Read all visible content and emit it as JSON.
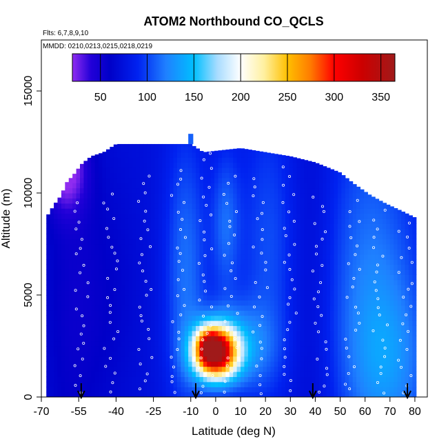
{
  "chart_data": {
    "type": "heatmap",
    "title": "ATOM2 Northbound CO_QCLS",
    "notes": {
      "flights": "Flts: 6,7,8,9,10",
      "dates": "MMDD: 0210,0213,0215,0218,0219"
    },
    "xlabel": "Latitude (deg N)",
    "ylabel": "Altitude (m)",
    "xlim": [
      -70,
      85
    ],
    "ylim": [
      0,
      17500
    ],
    "x_ticks": [
      -70,
      -55,
      -40,
      -25,
      -10,
      0,
      10,
      20,
      30,
      40,
      50,
      60,
      70,
      80
    ],
    "x_tick_labels": [
      "-70",
      "-55",
      "-40",
      "-25",
      "-10",
      "0",
      "10",
      "20",
      "30",
      "40",
      "50",
      "60",
      "70",
      "80"
    ],
    "y_ticks": [
      0,
      5000,
      10000,
      15000
    ],
    "y_tick_labels": [
      "0",
      "5000",
      "10000",
      "15000"
    ],
    "colorbar": {
      "range": [
        20,
        365
      ],
      "ticks": [
        50,
        100,
        150,
        200,
        250,
        300,
        350
      ],
      "tick_labels": [
        "50",
        "100",
        "150",
        "200",
        "250",
        "300",
        "350"
      ],
      "stops": [
        {
          "v": 20,
          "c": "#8f2cf0"
        },
        {
          "v": 40,
          "c": "#2200d8"
        },
        {
          "v": 60,
          "c": "#0000c8"
        },
        {
          "v": 90,
          "c": "#0022f0"
        },
        {
          "v": 120,
          "c": "#1f80ff"
        },
        {
          "v": 150,
          "c": "#00bfff"
        },
        {
          "v": 175,
          "c": "#a8dcff"
        },
        {
          "v": 200,
          "c": "#ffffff"
        },
        {
          "v": 225,
          "c": "#fff0a0"
        },
        {
          "v": 250,
          "c": "#ffc000"
        },
        {
          "v": 275,
          "c": "#ff7a00"
        },
        {
          "v": 300,
          "c": "#ff0000"
        },
        {
          "v": 330,
          "c": "#cc0000"
        },
        {
          "v": 365,
          "c": "#a01a1a"
        }
      ]
    },
    "grid": false,
    "ceiling_profile": [
      [
        -68,
        8800
      ],
      [
        -65,
        9400
      ],
      [
        -62,
        9900
      ],
      [
        -60,
        10500
      ],
      [
        -57,
        10900
      ],
      [
        -54,
        11400
      ],
      [
        -50,
        11800
      ],
      [
        -45,
        12000
      ],
      [
        -40,
        12400
      ],
      [
        -10,
        12400
      ],
      [
        -5,
        12000
      ],
      [
        10,
        12200
      ],
      [
        30,
        11800
      ],
      [
        40,
        11500
      ],
      [
        50,
        11000
      ],
      [
        55,
        10500
      ],
      [
        62,
        9900
      ],
      [
        68,
        9500
      ],
      [
        75,
        9100
      ],
      [
        80,
        8800
      ]
    ],
    "upper_tower": {
      "lat_range": [
        -11,
        -9
      ],
      "alt_range": [
        12400,
        12900
      ]
    },
    "background_value": 75,
    "features": [
      {
        "lat": 0,
        "alt": 2200,
        "sx": 6,
        "sy": 900,
        "value": 260
      },
      {
        "lat": -3,
        "alt": 2500,
        "sx": 3,
        "sy": 550,
        "value": 80
      },
      {
        "lat": 8,
        "alt": 2500,
        "sx": 10,
        "sy": 1400,
        "value": 50
      },
      {
        "lat": -12,
        "alt": 6000,
        "sx": 6,
        "sy": 5000,
        "value": 40
      },
      {
        "lat": 4,
        "alt": 8500,
        "sx": 4,
        "sy": 2500,
        "value": 35
      },
      {
        "lat": 22,
        "alt": 7000,
        "sx": 9,
        "sy": 5500,
        "value": 30
      },
      {
        "lat": 62,
        "alt": 6000,
        "sx": 14,
        "sy": 6000,
        "value": 40
      },
      {
        "lat": 70,
        "alt": 1500,
        "sx": 12,
        "sy": 3000,
        "value": 35
      },
      {
        "lat": -60,
        "alt": 11200,
        "sx": 6,
        "sy": 1500,
        "value": -50
      }
    ],
    "dark_regions": [
      {
        "lat": -48,
        "alt": 5000,
        "sx": 12,
        "sy": 5000,
        "value": -15
      },
      {
        "lat": 37,
        "alt": 6000,
        "sx": 8,
        "sy": 7000,
        "value": -15
      }
    ],
    "flight_tracks": [
      {
        "lat": -54,
        "alt": [
          200,
          9800
        ]
      },
      {
        "lat": -42,
        "alt": [
          300,
          10300
        ]
      },
      {
        "lat": -28,
        "alt": [
          300,
          11100
        ]
      },
      {
        "lat": -15,
        "alt": [
          250,
          11300
        ]
      },
      {
        "lat": -4,
        "alt": [
          200,
          12100
        ]
      },
      {
        "lat": 6,
        "alt": [
          300,
          11000
        ]
      },
      {
        "lat": 18,
        "alt": [
          250,
          11000
        ]
      },
      {
        "lat": 30,
        "alt": [
          300,
          11400
        ]
      },
      {
        "lat": 42,
        "alt": [
          200,
          10000
        ]
      },
      {
        "lat": 55,
        "alt": [
          300,
          9600
        ]
      },
      {
        "lat": 66,
        "alt": [
          250,
          9200
        ]
      },
      {
        "lat": 76,
        "alt": [
          200,
          8800
        ]
      }
    ],
    "track_arrows": [
      -54,
      -8,
      39,
      77
    ]
  }
}
